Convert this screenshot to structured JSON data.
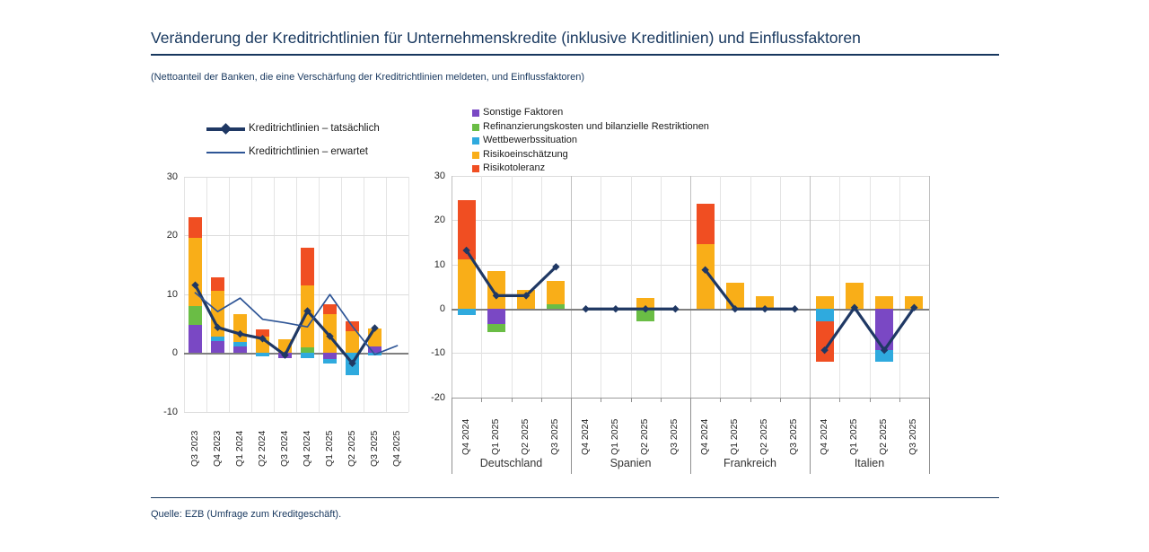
{
  "header": {
    "title": "Veränderung der Kreditrichtlinien für Unternehmenskredite (inklusive Kreditlinien) und Einflussfaktoren",
    "subtitle": "(Nettoanteil der Banken, die eine Verschärfung der Kreditrichtlinien meldeten, und Einflussfaktoren)"
  },
  "footer": {
    "source": "Quelle: EZB (Umfrage zum Kreditgeschäft)."
  },
  "colors": {
    "accent_navy": "#17375e",
    "line_actual": "#1f3864",
    "line_expected": "#2e5596",
    "factor_purple": "#7a48c4",
    "factor_green": "#6abd45",
    "factor_cyan": "#2faade",
    "factor_yellow": "#f9ae18",
    "factor_red": "#f04e22"
  },
  "chart_data": [
    {
      "id": "euro-area",
      "type": "bar",
      "subtype": "stacked-bars-with-lines",
      "categories": [
        "Q3 2023",
        "Q4 2023",
        "Q1 2024",
        "Q2 2024",
        "Q3 2024",
        "Q4 2024",
        "Q1 2025",
        "Q2 2025",
        "Q3 2025",
        "Q4 2025"
      ],
      "ylim": [
        -10,
        30
      ],
      "yticks": [
        30,
        20,
        10,
        0,
        -10
      ],
      "grid": true,
      "series": [
        {
          "name": "Sonstige Faktoren",
          "color": "#7a48c4",
          "values": [
            4.7,
            2.0,
            1.0,
            0,
            -0.9,
            0,
            -1.0,
            0,
            1.0,
            0
          ]
        },
        {
          "name": "Refinanzierungskosten und bilanzielle Restriktionen",
          "color": "#6abd45",
          "values": [
            3.3,
            0,
            0,
            0,
            0,
            0.9,
            0,
            0,
            0,
            0
          ]
        },
        {
          "name": "Wettbewerbssituation",
          "color": "#2faade",
          "values": [
            0,
            0.8,
            0.9,
            -0.6,
            0,
            -0.9,
            -0.8,
            -3.8,
            -0.5,
            0
          ]
        },
        {
          "name": "Risikoeinschätzung",
          "color": "#f9ae18",
          "values": [
            11.5,
            7.8,
            4.6,
            2.8,
            2.3,
            10.6,
            6.5,
            3.6,
            3.1,
            0
          ]
        },
        {
          "name": "Risikotoleranz",
          "color": "#f04e22",
          "values": [
            3.5,
            2.2,
            0,
            1.1,
            0,
            6.4,
            1.7,
            1.7,
            0,
            0
          ]
        }
      ],
      "lines": [
        {
          "name": "Kreditrichtlinien – tatsächlich",
          "color": "#1f3864",
          "width": 3.2,
          "markers": true,
          "values": [
            11.5,
            4.3,
            3.2,
            2.4,
            -0.4,
            7.1,
            2.8,
            -1.8,
            4.2,
            null
          ]
        },
        {
          "name": "Kreditrichtlinien – erwartet",
          "color": "#2e5596",
          "width": 1.7,
          "markers": false,
          "values": [
            10.2,
            7.0,
            9.3,
            5.7,
            5.1,
            4.4,
            9.9,
            4.5,
            -0.3,
            1.2
          ]
        }
      ]
    },
    {
      "id": "countries",
      "type": "bar",
      "subtype": "stacked-bars-small-multiples-with-line",
      "categories": [
        "Q4 2024",
        "Q1 2025",
        "Q2 2025",
        "Q3 2025"
      ],
      "ylim": [
        -20,
        30
      ],
      "yticks": [
        30,
        20,
        10,
        0,
        -10,
        -20
      ],
      "grid": true,
      "legend_position": "top",
      "factors": [
        "Sonstige Faktoren",
        "Refinanzierungskosten und bilanzielle Restriktionen",
        "Wettbewerbssituation",
        "Risikoeinschätzung",
        "Risikotoleranz"
      ],
      "factor_colors": [
        "#7a48c4",
        "#6abd45",
        "#2faade",
        "#f9ae18",
        "#f04e22"
      ],
      "line_name": "Kreditrichtlinien – tatsächlich",
      "panels": [
        {
          "label": "Deutschland",
          "factor_values": [
            [
              0,
              -3.5,
              0,
              0
            ],
            [
              0,
              -1.8,
              0,
              1.0
            ],
            [
              -1.5,
              0,
              0,
              0
            ],
            [
              11.1,
              8.6,
              4.2,
              5.3
            ],
            [
              13.4,
              0,
              0,
              0
            ]
          ],
          "line": [
            13.2,
            3.0,
            3.0,
            9.5
          ]
        },
        {
          "label": "Spanien",
          "factor_values": [
            [
              0,
              0,
              0,
              0
            ],
            [
              0,
              0,
              -2.8,
              0
            ],
            [
              0,
              0,
              0,
              0
            ],
            [
              0,
              0,
              2.4,
              0
            ],
            [
              0,
              0,
              0,
              0
            ]
          ],
          "line": [
            0,
            0,
            0,
            0
          ]
        },
        {
          "label": "Frankreich",
          "factor_values": [
            [
              0,
              0,
              0,
              0
            ],
            [
              0,
              0,
              0,
              0
            ],
            [
              0,
              0,
              0,
              0
            ],
            [
              14.5,
              5.8,
              2.8,
              0
            ],
            [
              9.2,
              0,
              0,
              0
            ]
          ],
          "line": [
            8.8,
            0,
            0,
            0
          ]
        },
        {
          "label": "Italien",
          "factor_values": [
            [
              0,
              0,
              -9.3,
              0
            ],
            [
              0,
              0,
              0,
              0
            ],
            [
              -2.8,
              0,
              -2.6,
              0
            ],
            [
              2.8,
              5.9,
              2.8,
              2.8
            ],
            [
              -9.1,
              0,
              0,
              0
            ]
          ],
          "line": [
            -9.3,
            0.3,
            -9.3,
            0.3
          ]
        }
      ]
    }
  ]
}
